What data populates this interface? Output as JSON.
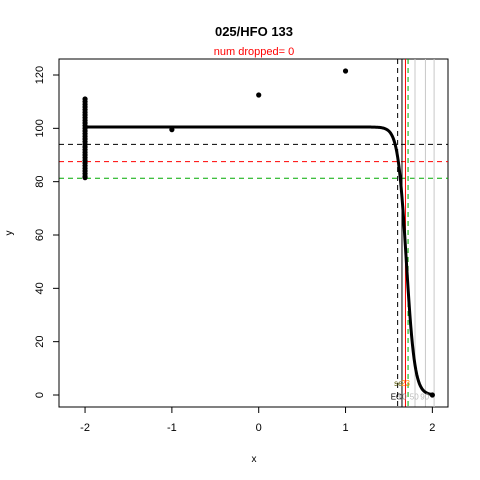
{
  "chart_data": {
    "type": "scatter",
    "title": "025/HFO 133",
    "subtitle": "num dropped= 0",
    "xlabel": "x",
    "ylabel": "y",
    "xlim": [
      -2.3,
      2.18
    ],
    "ylim": [
      -4.5,
      126
    ],
    "x_ticks": [
      -2,
      -1,
      0,
      1,
      2
    ],
    "y_ticks": [
      0,
      20,
      40,
      60,
      80,
      100,
      120
    ],
    "grid": false,
    "points": [
      {
        "x": -2,
        "y": 111
      },
      {
        "x": -2,
        "y": 110
      },
      {
        "x": -2,
        "y": 109
      },
      {
        "x": -2,
        "y": 108
      },
      {
        "x": -2,
        "y": 107
      },
      {
        "x": -2,
        "y": 106
      },
      {
        "x": -2,
        "y": 105
      },
      {
        "x": -2,
        "y": 104
      },
      {
        "x": -2,
        "y": 103
      },
      {
        "x": -2,
        "y": 102
      },
      {
        "x": -2,
        "y": 101
      },
      {
        "x": -2,
        "y": 100
      },
      {
        "x": -2,
        "y": 99
      },
      {
        "x": -2,
        "y": 98
      },
      {
        "x": -2,
        "y": 97
      },
      {
        "x": -2,
        "y": 96
      },
      {
        "x": -2,
        "y": 95
      },
      {
        "x": -2,
        "y": 94
      },
      {
        "x": -2,
        "y": 93
      },
      {
        "x": -2,
        "y": 92
      },
      {
        "x": -2,
        "y": 91
      },
      {
        "x": -2,
        "y": 90
      },
      {
        "x": -2,
        "y": 89
      },
      {
        "x": -2,
        "y": 88
      },
      {
        "x": -2,
        "y": 87
      },
      {
        "x": -2,
        "y": 86
      },
      {
        "x": -2,
        "y": 85
      },
      {
        "x": -2,
        "y": 84
      },
      {
        "x": -2,
        "y": 83
      },
      {
        "x": -2,
        "y": 82
      },
      {
        "x": -2,
        "y": 81.5
      },
      {
        "x": -1,
        "y": 99.5
      },
      {
        "x": 0,
        "y": 112.5
      },
      {
        "x": 1,
        "y": 121.5
      },
      {
        "x": 2,
        "y": 0
      }
    ],
    "fit_curve": {
      "top": 100.5,
      "bottom": 0,
      "ec50": 1.7,
      "hill": 9,
      "x_range": [
        -2,
        2
      ]
    },
    "hlines": [
      {
        "y": 94,
        "color": "#000000",
        "dash": true
      },
      {
        "y": 87.5,
        "color": "#ff0000",
        "dash": true
      },
      {
        "y": 81.3,
        "color": "#00aa00",
        "dash": true
      }
    ],
    "vlines": [
      {
        "x": 1.6,
        "color": "#000000",
        "dash": true
      },
      {
        "x": 1.65,
        "color": "#000000",
        "dash": false
      },
      {
        "x": 1.69,
        "color": "#ff0000",
        "dash": false
      },
      {
        "x": 1.72,
        "color": "#00aa00",
        "dash": true
      },
      {
        "x": 1.8,
        "color": "#c8c8c8",
        "dash": false
      },
      {
        "x": 1.92,
        "color": "#c8c8c8",
        "dash": false
      },
      {
        "x": 2.02,
        "color": "#c8c8c8",
        "dash": false
      }
    ],
    "annotations": [
      {
        "text": "se",
        "x": 1.56,
        "y": 4.5,
        "color": "#555500"
      },
      {
        "text": "23",
        "x": 1.64,
        "y": 4.5,
        "color": "#ff8800"
      },
      {
        "text": "EC",
        "x": 1.52,
        "y": -0.5,
        "color": "#000000"
      },
      {
        "text": "10",
        "x": 1.6,
        "y": -0.5,
        "color": "#888888"
      },
      {
        "text": "50",
        "x": 1.74,
        "y": -0.5,
        "color": "#bbbbbb"
      },
      {
        "text": "90",
        "x": 1.86,
        "y": -0.5,
        "color": "#bbbbbb"
      }
    ]
  }
}
